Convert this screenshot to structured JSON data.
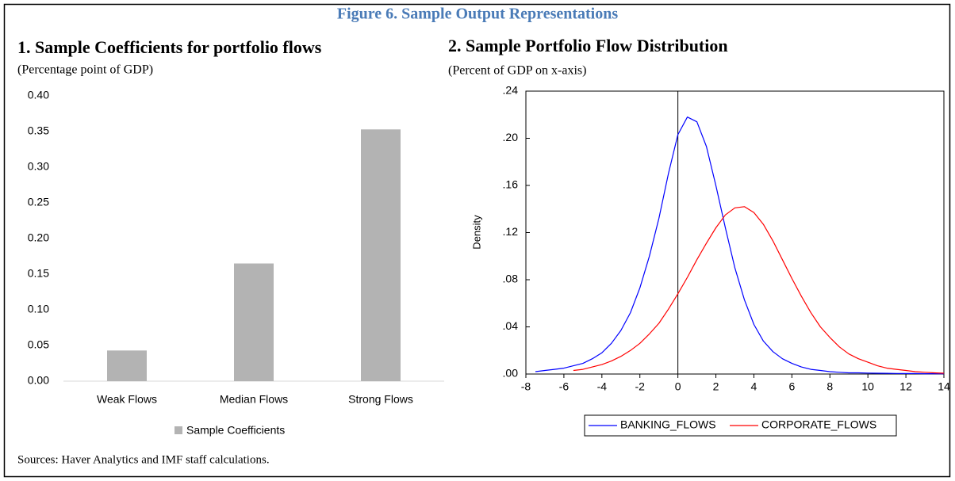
{
  "figure": {
    "title": "Figure 6. Sample Output  Representations",
    "source": "Sources: Haver Analytics and IMF staff calculations."
  },
  "chart_data": [
    {
      "type": "bar",
      "title": "1. Sample Coefficients for portfolio flows",
      "subtitle": "(Percentage  point of GDP)",
      "categories": [
        "Weak Flows",
        "Median Flows",
        "Strong Flows"
      ],
      "series": [
        {
          "name": "Sample Coefficients",
          "color": "#b3b3b3",
          "values": [
            0.043,
            0.165,
            0.353
          ]
        }
      ],
      "ylim": [
        0,
        0.4
      ],
      "yticks": [
        {
          "value": 0,
          "label": "0.00"
        },
        {
          "value": 0.05,
          "label": "0.05"
        },
        {
          "value": 0.1,
          "label": "0.10"
        },
        {
          "value": 0.15,
          "label": "0.15"
        },
        {
          "value": 0.2,
          "label": "0.20"
        },
        {
          "value": 0.25,
          "label": "0.25"
        },
        {
          "value": 0.3,
          "label": "0.30"
        },
        {
          "value": 0.35,
          "label": "0.35"
        },
        {
          "value": 0.4,
          "label": "0.40"
        }
      ],
      "grid": false,
      "legend": "bottom"
    },
    {
      "type": "line",
      "title": "2. Sample Portfolio Flow Distribution",
      "subtitle": "(Percent of GDP on x-axis)",
      "ylabel": "Density",
      "x": [
        -7.5,
        -7,
        -6.5,
        -6,
        -5.5,
        -5,
        -4.5,
        -4,
        -3.5,
        -3,
        -2.5,
        -2,
        -1.5,
        -1,
        -0.5,
        0,
        0.5,
        1,
        1.5,
        2,
        2.5,
        3,
        3.5,
        4,
        4.5,
        5,
        5.5,
        6,
        6.5,
        7,
        7.5,
        8,
        8.5,
        9,
        9.5,
        10,
        10.5,
        11,
        11.5,
        12,
        12.5,
        13,
        13.5,
        14
      ],
      "series": [
        {
          "name": "BANKING_FLOWS",
          "color": "#0000ff",
          "values": [
            0.002,
            0.003,
            0.004,
            0.005,
            0.007,
            0.009,
            0.013,
            0.018,
            0.026,
            0.037,
            0.052,
            0.073,
            0.1,
            0.132,
            0.17,
            0.203,
            0.218,
            0.214,
            0.193,
            0.16,
            0.124,
            0.09,
            0.063,
            0.042,
            0.028,
            0.019,
            0.013,
            0.009,
            0.006,
            0.004,
            0.003,
            0.002,
            0.0015,
            0.001,
            0.001,
            0.0008,
            0.0007,
            0.0006,
            0.0005,
            0.0004,
            0.0004,
            0.0003,
            0.0003,
            0.0002
          ]
        },
        {
          "name": "CORPORATE_FLOWS",
          "color": "#ff0000",
          "values": [
            null,
            null,
            null,
            null,
            0.003,
            0.004,
            0.006,
            0.008,
            0.011,
            0.015,
            0.02,
            0.026,
            0.034,
            0.043,
            0.055,
            0.068,
            0.082,
            0.097,
            0.111,
            0.124,
            0.135,
            0.141,
            0.142,
            0.137,
            0.127,
            0.113,
            0.097,
            0.081,
            0.066,
            0.052,
            0.04,
            0.031,
            0.023,
            0.017,
            0.013,
            0.01,
            0.007,
            0.005,
            0.004,
            0.003,
            0.002,
            0.0015,
            0.001,
            0.0007
          ]
        }
      ],
      "xlim": [
        -8,
        14
      ],
      "xticks": [
        -8,
        -6,
        -4,
        -2,
        0,
        2,
        4,
        6,
        8,
        10,
        12,
        14
      ],
      "ylim": [
        0,
        0.24
      ],
      "yticks": [
        {
          "value": 0,
          "label": ".00"
        },
        {
          "value": 0.04,
          "label": ".04"
        },
        {
          "value": 0.08,
          "label": ".08"
        },
        {
          "value": 0.12,
          "label": ".12"
        },
        {
          "value": 0.16,
          "label": ".16"
        },
        {
          "value": 0.2,
          "label": ".20"
        },
        {
          "value": 0.24,
          "label": ".24"
        }
      ],
      "zero_line": true,
      "legend": "bottom"
    }
  ]
}
